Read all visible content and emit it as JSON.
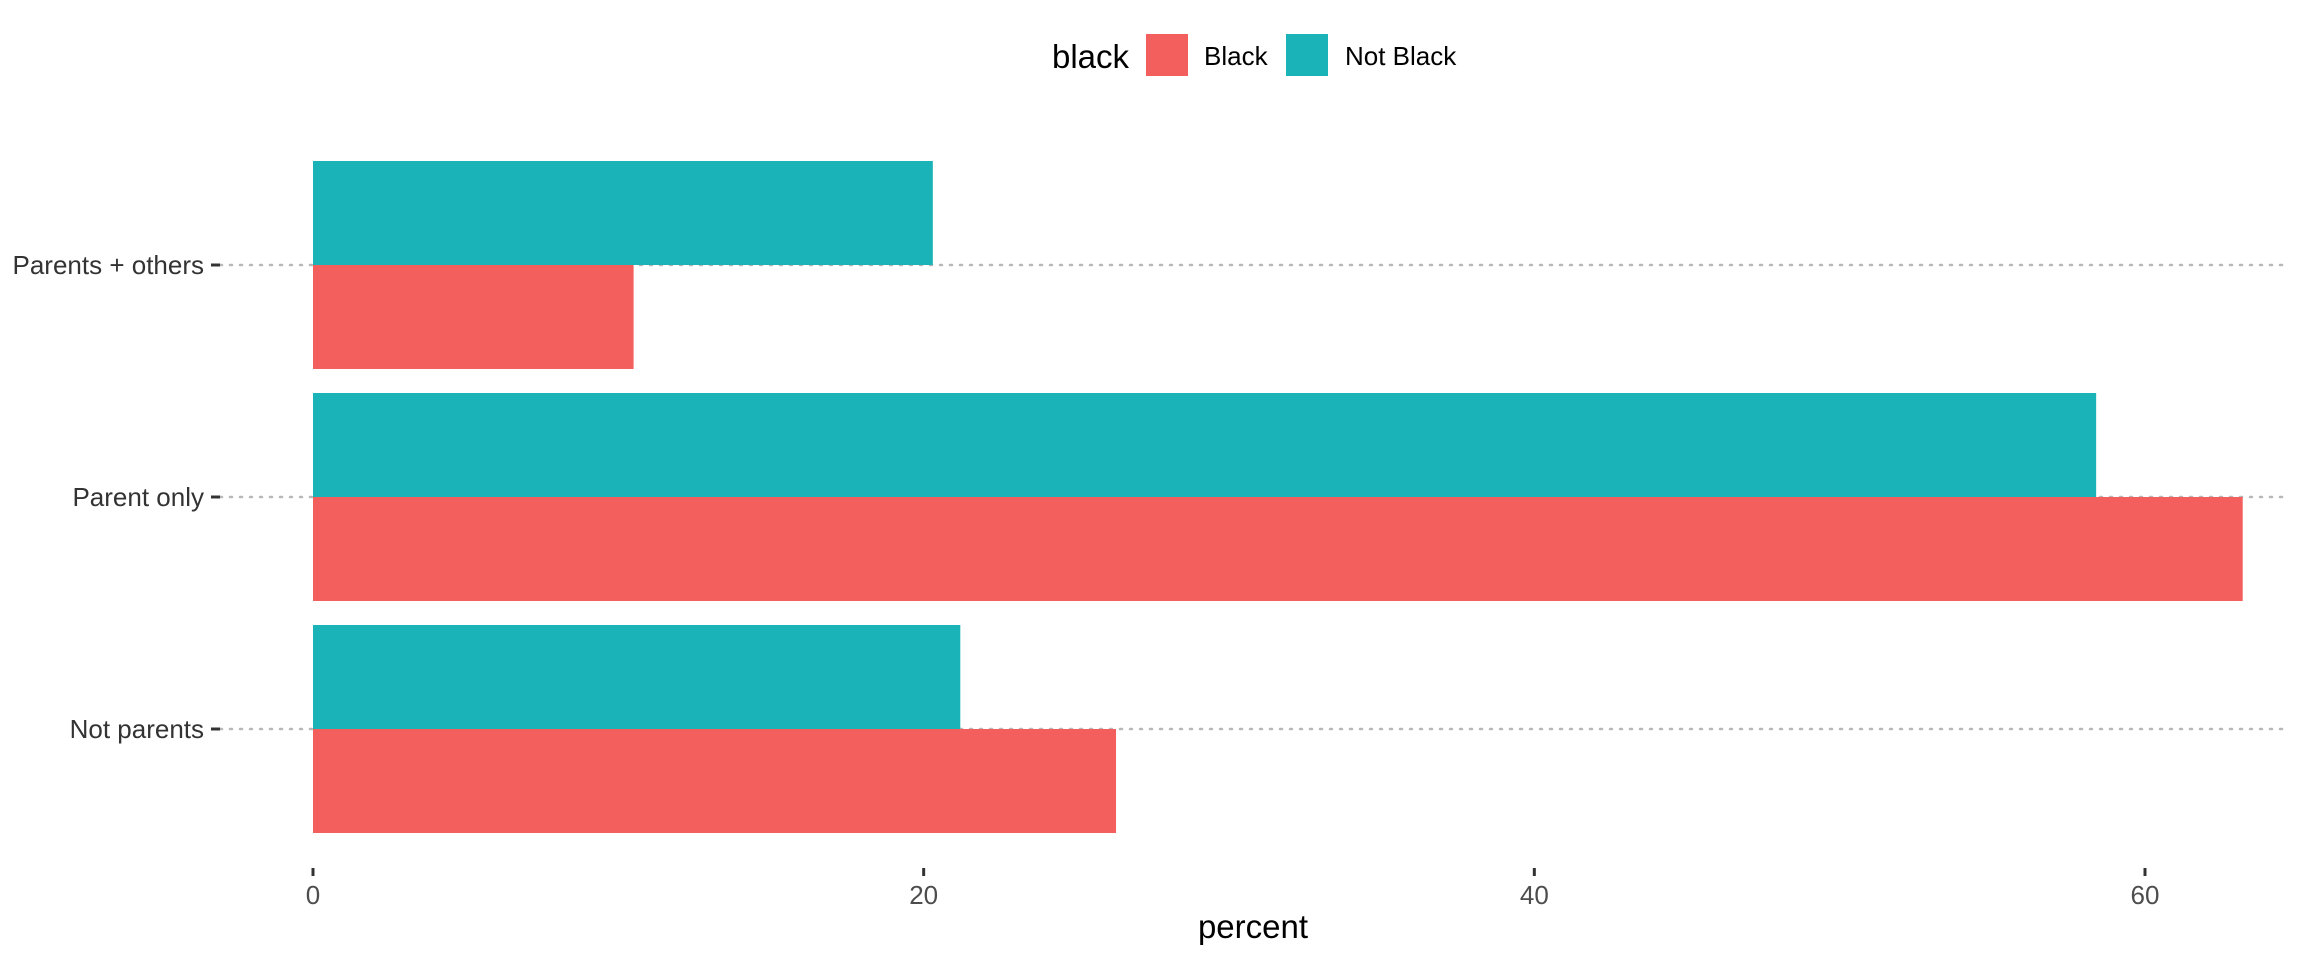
{
  "chart_data": {
    "type": "bar",
    "orientation": "horizontal",
    "categories": [
      "Parents + others",
      "Parent only",
      "Not parents"
    ],
    "series": [
      {
        "name": "Black",
        "color": "#F25F5C",
        "values": [
          10.5,
          63.2,
          26.3
        ]
      },
      {
        "name": "Not Black",
        "color": "#1AB3B8",
        "values": [
          20.3,
          58.4,
          21.2
        ]
      }
    ],
    "xlabel": "percent",
    "ylabel": "",
    "xlim": [
      0,
      66.3
    ],
    "xticks": [
      0,
      20,
      40,
      60
    ],
    "xtick_labels": [
      "0",
      "20",
      "40",
      "60"
    ],
    "legend": {
      "title": "black",
      "position": "top"
    },
    "grid": {
      "major_y": true,
      "style": "dotted"
    }
  }
}
